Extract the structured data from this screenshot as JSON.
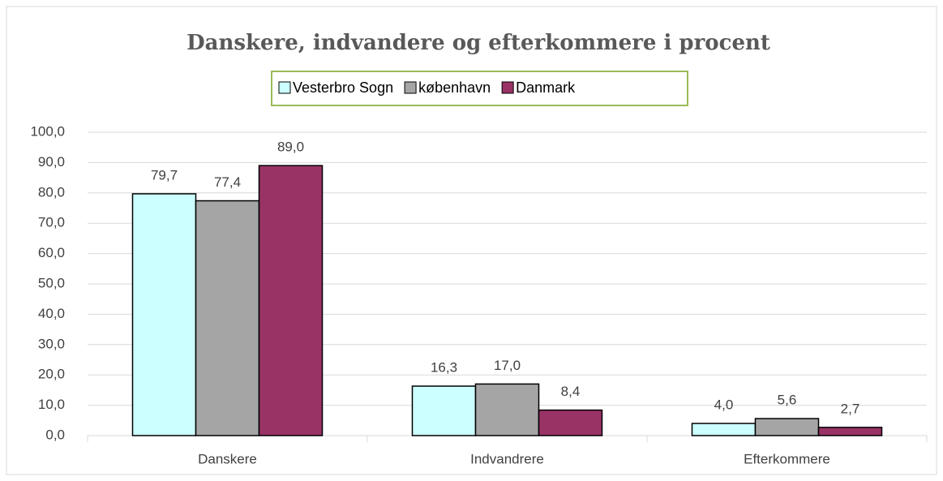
{
  "chart_data": {
    "type": "bar",
    "title": "Danskere, indvandere og efterkommere i procent",
    "categories": [
      "Danskere",
      "Indvandrere",
      "Efterkommere"
    ],
    "series": [
      {
        "name": "Vesterbro Sogn",
        "color": "#ccffff",
        "values": [
          79.7,
          16.3,
          4.0
        ],
        "value_labels": [
          "79,7",
          "16,3",
          "4,0"
        ]
      },
      {
        "name": "københavn",
        "color": "#a5a5a5",
        "values": [
          77.4,
          17.0,
          5.6
        ],
        "value_labels": [
          "77,4",
          "17,0",
          "5,6"
        ]
      },
      {
        "name": "Danmark",
        "color": "#993366",
        "values": [
          89.0,
          8.4,
          2.7
        ],
        "value_labels": [
          "89,0",
          "8,4",
          "2,7"
        ]
      }
    ],
    "ylim": [
      0,
      100
    ],
    "yticks": [
      {
        "value": 0,
        "label": "0,0"
      },
      {
        "value": 10,
        "label": "10,0"
      },
      {
        "value": 20,
        "label": "20,0"
      },
      {
        "value": 30,
        "label": "30,0"
      },
      {
        "value": 40,
        "label": "40,0"
      },
      {
        "value": 50,
        "label": "50,0"
      },
      {
        "value": 60,
        "label": "60,0"
      },
      {
        "value": 70,
        "label": "70,0"
      },
      {
        "value": 80,
        "label": "80,0"
      },
      {
        "value": 90,
        "label": "90,0"
      },
      {
        "value": 100,
        "label": "100,0"
      }
    ],
    "grid": true,
    "legend": "top"
  }
}
